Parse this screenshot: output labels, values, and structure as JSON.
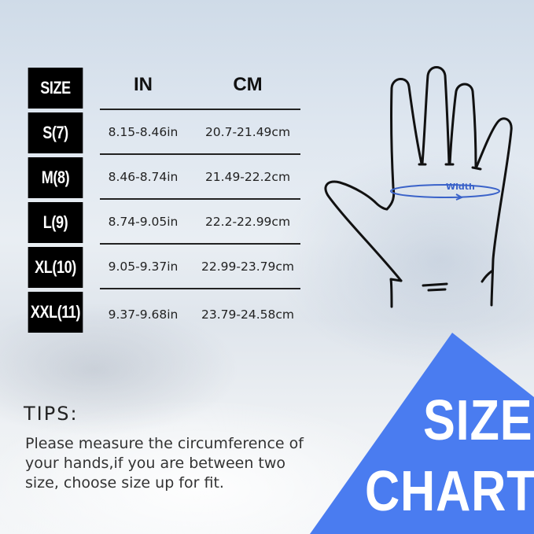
{
  "table": {
    "headers": {
      "size": "SIZE",
      "in": "IN",
      "cm": "CM"
    },
    "rows": [
      {
        "size": "S(7)",
        "in": "8.15-8.46in",
        "cm": "20.7-21.49cm"
      },
      {
        "size": "M(8)",
        "in": "8.46-8.74in",
        "cm": "21.49-22.2cm"
      },
      {
        "size": "L(9)",
        "in": "8.74-9.05in",
        "cm": "22.2-22.99cm"
      },
      {
        "size": "XL(10)",
        "in": "9.05-9.37in",
        "cm": "22.99-23.79cm"
      },
      {
        "size": "XXL(11)",
        "in": "9.37-9.68in",
        "cm": "23.79-24.58cm"
      }
    ]
  },
  "diagram": {
    "width_label": "Width",
    "accent": "#3a62c9"
  },
  "tips": {
    "title": "TIPS:",
    "text": "Please measure the circumference of your hands,if you are between two size, choose size up for fit."
  },
  "banner": {
    "line1": "SIZE",
    "line2": "CHART",
    "color": "#4a7cf0"
  }
}
